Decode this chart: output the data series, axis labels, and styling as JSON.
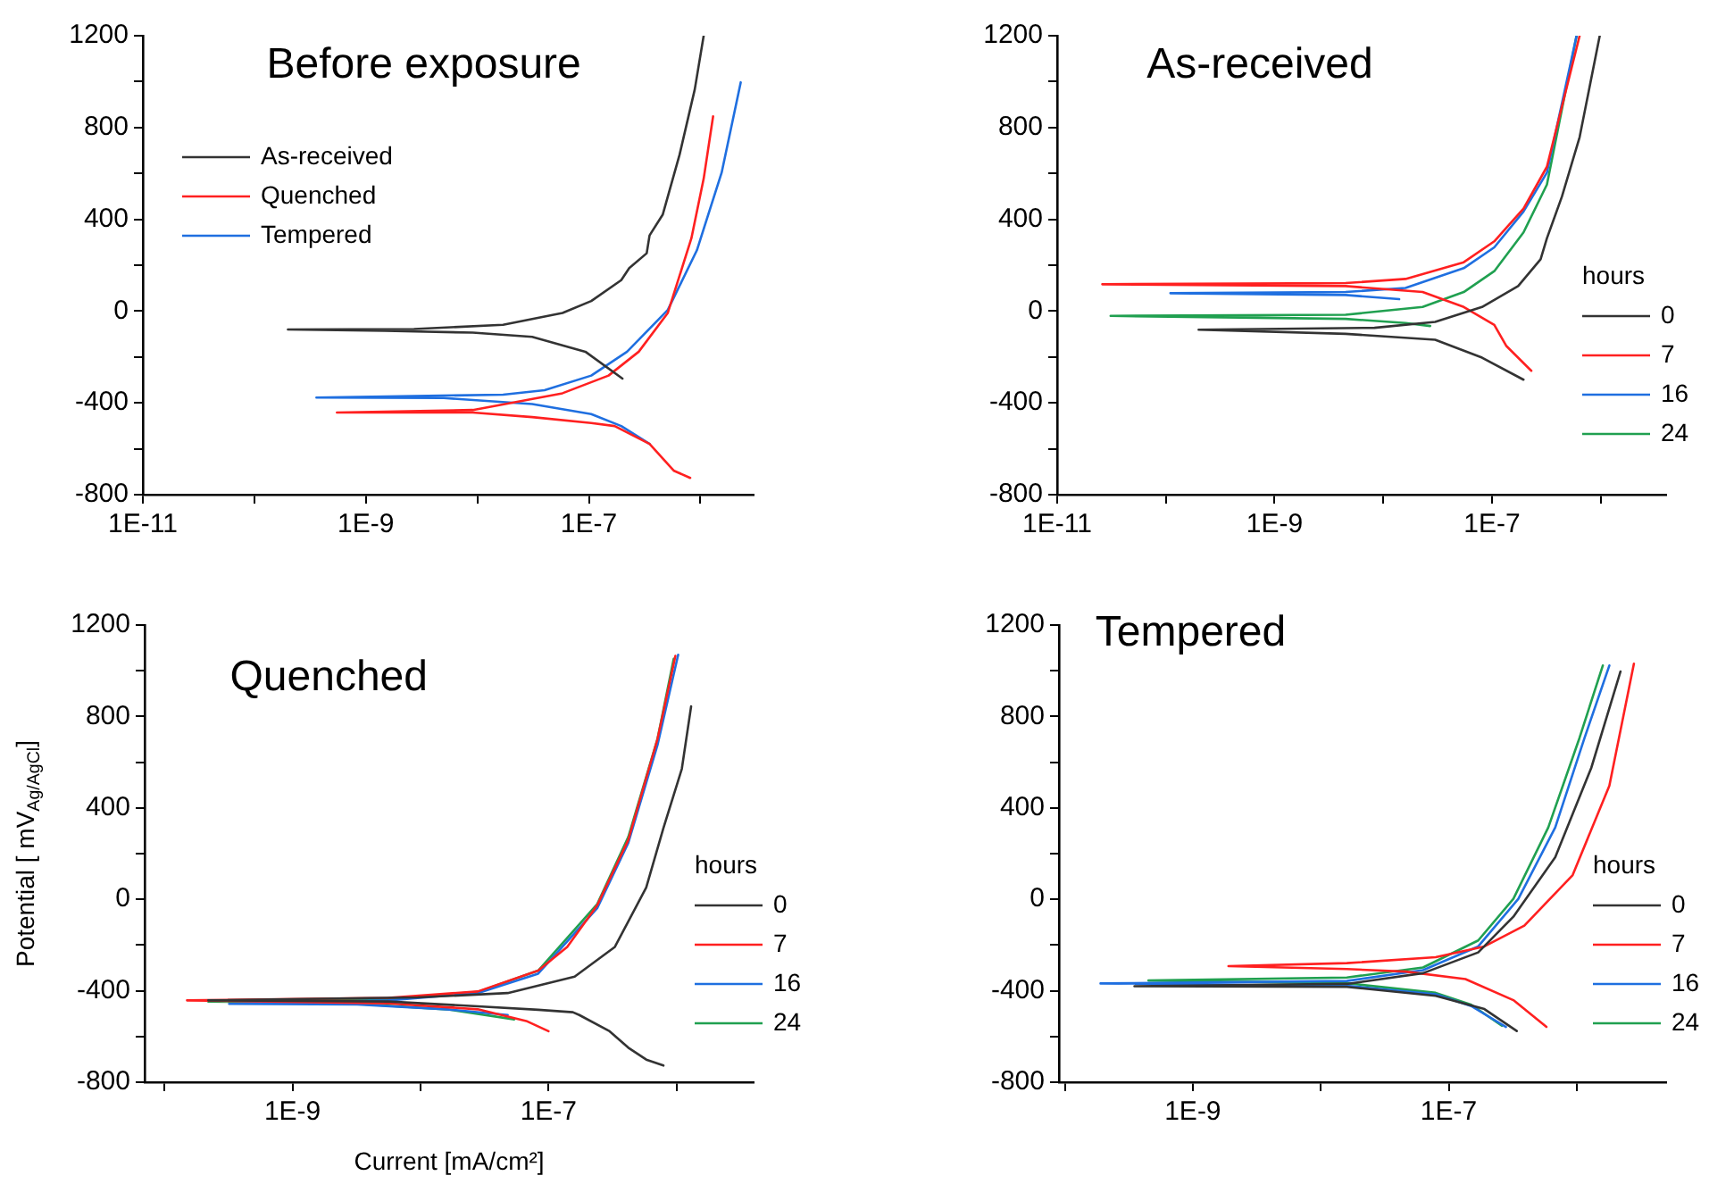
{
  "chart_data": [
    {
      "type": "line",
      "title": "Before exposure",
      "log": "x",
      "legend": "top left",
      "xlim": [
        1e-11,
        3e-06
      ],
      "ylim": [
        -800,
        1200
      ],
      "xticks": [
        {
          "value": 1e-11,
          "label": "1E-11"
        },
        {
          "value": 1e-10,
          "label": null
        },
        {
          "value": 1e-09,
          "label": "1E-9"
        },
        {
          "value": 1e-08,
          "label": null
        },
        {
          "value": 1e-07,
          "label": "1E-7"
        },
        {
          "value": 1e-06,
          "label": null
        }
      ],
      "yticks": [
        -800,
        {
          "value": -600,
          "label": null
        },
        -400,
        {
          "value": -200,
          "label": null
        },
        0,
        {
          "value": 200,
          "label": null
        },
        400,
        {
          "value": 600,
          "label": null
        },
        800,
        {
          "value": 1000,
          "label": null
        },
        1200
      ],
      "series": [
        {
          "name": "As-received",
          "color": "#333333",
          "x": [
            2e-07,
            9.3e-08,
            3.1e-08,
            9.1e-09,
            1.5e-09,
            2e-10,
            2.7e-09,
            1.7e-08,
            5.8e-08,
            1.05e-07,
            1.95e-07,
            2.3e-07,
            3.3e-07,
            3.5e-07,
            4.6e-07,
            6.5e-07,
            8.9e-07,
            1.07e-06
          ],
          "values": [
            -294,
            -177,
            -112,
            -94,
            -86,
            -80,
            -78,
            -60,
            -8,
            44,
            135,
            187,
            252,
            330,
            421,
            681,
            966,
            1200
          ]
        },
        {
          "name": "Quenched",
          "color": "#ff2020",
          "x": [
            8.1e-07,
            5.8e-07,
            3.5e-07,
            1.7e-07,
            1.05e-07,
            3.1e-08,
            9.1e-09,
            5.5e-10,
            9.1e-09,
            5.8e-08,
            1.5e-07,
            2.8e-07,
            5.1e-07,
            8.3e-07,
            1.07e-06,
            1.3e-06
          ],
          "values": [
            -727,
            -696,
            -579,
            -501,
            -488,
            -462,
            -442,
            -442,
            -431,
            -358,
            -281,
            -177,
            -8,
            317,
            577,
            849
          ]
        },
        {
          "name": "Tempered",
          "color": "#1f6fe0",
          "x": [
            3.5e-07,
            1.95e-07,
            1.05e-07,
            3.1e-08,
            5e-09,
            3.6e-10,
            1.7e-08,
            4e-08,
            1.05e-07,
            2.2e-07,
            5.1e-07,
            9.3e-07,
            1.55e-06,
            2.3e-06
          ],
          "values": [
            -579,
            -501,
            -449,
            -405,
            -379,
            -377,
            -364,
            -345,
            -281,
            -177,
            5,
            265,
            603,
            997
          ]
        }
      ]
    },
    {
      "type": "line",
      "title": "As-received",
      "log": "x",
      "legend": "right",
      "legend_title": "hours",
      "xlim": [
        1e-11,
        4e-06
      ],
      "ylim": [
        -800,
        1200
      ],
      "xticks": [
        {
          "value": 1e-11,
          "label": "1E-11"
        },
        {
          "value": 1e-10,
          "label": null
        },
        {
          "value": 1e-09,
          "label": "1E-9"
        },
        {
          "value": 1e-08,
          "label": null
        },
        {
          "value": 1e-07,
          "label": "1E-7"
        },
        {
          "value": 1e-06,
          "label": null
        }
      ],
      "yticks": [
        -800,
        {
          "value": -600,
          "label": null
        },
        -400,
        {
          "value": -200,
          "label": null
        },
        0,
        {
          "value": 200,
          "label": null
        },
        400,
        {
          "value": 600,
          "label": null
        },
        800,
        {
          "value": 1000,
          "label": null
        },
        1200
      ],
      "series": [
        {
          "name": "0",
          "color": "#333333",
          "x": [
            1.95e-07,
            8.1e-08,
            3e-08,
            4.5e-09,
            2e-10,
            8.3e-09,
            3e-08,
            8.1e-08,
            1.74e-07,
            2.8e-07,
            3.2e-07,
            4.4e-07,
            6.4e-07,
            9.8e-07
          ],
          "values": [
            -299,
            -203,
            -125,
            -99,
            -81,
            -73,
            -47,
            18,
            109,
            226,
            317,
            499,
            758,
            1200
          ]
        },
        {
          "name": "7",
          "color": "#ff2020",
          "x": [
            2.3e-07,
            1.35e-07,
            1.05e-07,
            5.5e-08,
            2.3e-08,
            4.5e-09,
            2.6e-11,
            4.5e-09,
            1.6e-08,
            5.5e-08,
            1.05e-07,
            1.95e-07,
            3.2e-07,
            6.4e-07
          ],
          "values": [
            -260,
            -151,
            -60,
            18,
            83,
            109,
            117,
            122,
            140,
            213,
            304,
            447,
            629,
            1200
          ]
        },
        {
          "name": "16",
          "color": "#1f6fe0",
          "x": [
            1.4e-08,
            4.5e-09,
            1.1e-10,
            4.5e-09,
            1.6e-08,
            5.5e-08,
            1.05e-07,
            1.95e-07,
            3.2e-07,
            6e-07
          ],
          "values": [
            52,
            70,
            78,
            83,
            101,
            187,
            278,
            434,
            603,
            1200
          ]
        },
        {
          "name": "24",
          "color": "#20a050",
          "x": [
            2.7e-08,
            1.6e-08,
            4.5e-09,
            3.1e-11,
            4.5e-09,
            2.3e-08,
            5.5e-08,
            1.05e-07,
            1.95e-07,
            3.2e-07,
            6e-07
          ],
          "values": [
            -65,
            -52,
            -34,
            -21,
            -16,
            18,
            83,
            174,
            343,
            551,
            1200
          ]
        }
      ]
    },
    {
      "type": "line",
      "title": "Quenched",
      "xlabel": "Current [mA/cm²]",
      "ylabel": "Potential [ mV$_{Ag/AgCl}$]",
      "log": "x",
      "legend": "right",
      "legend_title": "hours",
      "xlim": [
        7e-11,
        4e-06
      ],
      "ylim": [
        -800,
        1200
      ],
      "xticks": [
        {
          "value": 1e-10,
          "label": null
        },
        {
          "value": 1e-09,
          "label": "1E-9"
        },
        {
          "value": 1e-08,
          "label": null
        },
        {
          "value": 1e-07,
          "label": "1E-7"
        },
        {
          "value": 1e-06,
          "label": null
        }
      ],
      "yticks": [
        -800,
        {
          "value": -600,
          "label": null
        },
        -400,
        {
          "value": -200,
          "label": null
        },
        0,
        {
          "value": 200,
          "label": null
        },
        400,
        {
          "value": 600,
          "label": null
        },
        800,
        {
          "value": 1000,
          "label": null
        },
        1200
      ],
      "series": [
        {
          "name": "0",
          "color": "#333333",
          "x": [
            7.9e-07,
            5.8e-07,
            4.2e-07,
            3e-07,
            1.74e-07,
            1.55e-07,
            8.3e-08,
            2.8e-08,
            5.6e-09,
            2.2e-10,
            9.5e-09,
            4.8e-08,
            1.6e-07,
            3.3e-07,
            5.8e-07,
            7.9e-07,
            1.1e-06,
            1.3e-06
          ],
          "values": [
            -727,
            -701,
            -649,
            -577,
            -506,
            -494,
            -483,
            -468,
            -447,
            -442,
            -429,
            -410,
            -338,
            -208,
            52,
            312,
            571,
            844
          ]
        },
        {
          "name": "7",
          "color": "#ff2020",
          "x": [
            1e-07,
            6.7e-08,
            2.8e-08,
            5.6e-09,
            1.5e-10,
            5.6e-09,
            2.8e-08,
            8.3e-08,
            1.4e-07,
            2.4e-07,
            4.2e-07,
            7.1e-07,
            9.8e-07
          ],
          "values": [
            -577,
            -532,
            -481,
            -455,
            -442,
            -431,
            -403,
            -312,
            -208,
            -26,
            260,
            701,
            1065
          ]
        },
        {
          "name": "16",
          "color": "#1f6fe0",
          "x": [
            4.8e-08,
            1.6e-08,
            3.2e-09,
            3.2e-10,
            5.6e-09,
            2.8e-08,
            8.3e-08,
            2.4e-07,
            4.2e-07,
            7.1e-07,
            1.03e-06
          ],
          "values": [
            -506,
            -481,
            -460,
            -457,
            -442,
            -410,
            -325,
            -39,
            247,
            675,
            1070
          ]
        },
        {
          "name": "24",
          "color": "#20a050",
          "x": [
            5.4e-08,
            1.6e-08,
            3.2e-09,
            2.2e-10,
            5.6e-09,
            2.8e-08,
            8.3e-08,
            2.4e-07,
            4.2e-07,
            7.1e-07,
            9.5e-07
          ],
          "values": [
            -525,
            -481,
            -457,
            -447,
            -436,
            -405,
            -312,
            -21,
            273,
            701,
            1052
          ]
        }
      ]
    },
    {
      "type": "line",
      "title": "Tempered",
      "log": "x",
      "legend": "right",
      "legend_title": "hours",
      "xlim": [
        9e-11,
        5e-06
      ],
      "ylim": [
        -800,
        1200
      ],
      "xticks": [
        {
          "value": 1e-10,
          "label": null
        },
        {
          "value": 1e-09,
          "label": "1E-9"
        },
        {
          "value": 1e-08,
          "label": null
        },
        {
          "value": 1e-07,
          "label": "1E-7"
        },
        {
          "value": 1e-06,
          "label": null
        }
      ],
      "yticks": [
        -800,
        {
          "value": -600,
          "label": null
        },
        -400,
        {
          "value": -200,
          "label": null
        },
        0,
        {
          "value": 200,
          "label": null
        },
        400,
        {
          "value": 600,
          "label": null
        },
        800,
        {
          "value": 1000,
          "label": null
        },
        1200
      ],
      "series": [
        {
          "name": "0",
          "color": "#333333",
          "x": [
            3.4e-07,
            1.9e-07,
            7.9e-08,
            1.6e-08,
            3.5e-10,
            1.6e-08,
            6.3e-08,
            1.7e-07,
            3.2e-07,
            6.8e-07,
            1.3e-06,
            2.2e-06
          ],
          "values": [
            -576,
            -480,
            -422,
            -383,
            -380,
            -370,
            -323,
            -232,
            -76,
            184,
            575,
            997
          ]
        },
        {
          "name": "7",
          "color": "#ff2020",
          "x": [
            5.8e-07,
            3.2e-07,
            1.35e-07,
            4.6e-08,
            1.6e-08,
            1.9e-09,
            1.6e-08,
            7.9e-08,
            1.9e-07,
            3.9e-07,
            9.3e-07,
            1.8e-06,
            2.8e-06
          ],
          "values": [
            -558,
            -441,
            -349,
            -316,
            -305,
            -292,
            -279,
            -253,
            -206,
            -115,
            106,
            497,
            1031
          ]
        },
        {
          "name": "16",
          "color": "#1f6fe0",
          "x": [
            2.8e-07,
            1.5e-07,
            7.9e-08,
            1.6e-08,
            1.9e-10,
            1.6e-08,
            6.3e-08,
            1.7e-07,
            3.5e-07,
            6.8e-07,
            1.15e-06,
            1.8e-06
          ],
          "values": [
            -558,
            -467,
            -415,
            -378,
            -368,
            -357,
            -310,
            -206,
            2,
            315,
            705,
            1023
          ]
        },
        {
          "name": "24",
          "color": "#20a050",
          "x": [
            2.6e-07,
            1.5e-07,
            7.9e-08,
            1.6e-08,
            4.5e-10,
            1.6e-08,
            6.3e-08,
            1.7e-07,
            3.2e-07,
            6e-07,
            1.05e-06,
            1.6e-06
          ],
          "values": [
            -553,
            -461,
            -409,
            -367,
            -355,
            -342,
            -298,
            -180,
            2,
            315,
            705,
            1023
          ]
        }
      ]
    }
  ]
}
